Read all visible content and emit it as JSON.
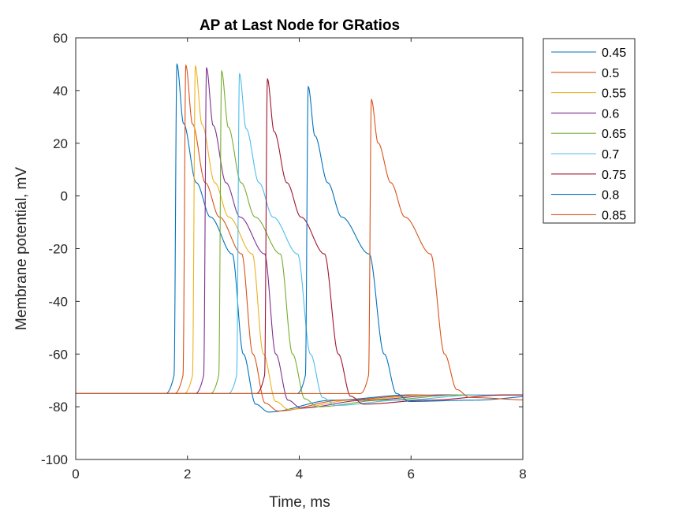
{
  "chart_data": {
    "type": "line",
    "title": "AP at Last Node for GRatios",
    "xlabel": "Time, ms",
    "ylabel": "Membrane potential, mV",
    "xlim": [
      0,
      8
    ],
    "ylim": [
      -100,
      60
    ],
    "xticks": [
      0,
      2,
      4,
      6,
      8
    ],
    "yticks": [
      -100,
      -80,
      -60,
      -40,
      -20,
      0,
      20,
      40,
      60
    ],
    "grid": false,
    "legend_position": "outside top-right",
    "series": [
      {
        "name": "0.45",
        "color": "#0072BD",
        "onset": 1.76,
        "peak": 50.0,
        "t_m20": 2.8,
        "repol": 3.0,
        "min": -82.0
      },
      {
        "name": "0.5",
        "color": "#D95319",
        "onset": 1.92,
        "peak": 49.6,
        "t_m20": 2.97,
        "repol": 3.17,
        "min": -81.6
      },
      {
        "name": "0.55",
        "color": "#EDB120",
        "onset": 2.09,
        "peak": 49.3,
        "t_m20": 3.16,
        "repol": 3.36,
        "min": -81.0
      },
      {
        "name": "0.6",
        "color": "#7E2F8E",
        "onset": 2.29,
        "peak": 48.6,
        "t_m20": 3.38,
        "repol": 3.58,
        "min": -80.5
      },
      {
        "name": "0.65",
        "color": "#77AC30",
        "onset": 2.56,
        "peak": 47.4,
        "t_m20": 3.66,
        "repol": 3.88,
        "min": -80.0
      },
      {
        "name": "0.7",
        "color": "#4DBEEE",
        "onset": 2.88,
        "peak": 46.4,
        "t_m20": 3.97,
        "repol": 4.2,
        "min": -79.5
      },
      {
        "name": "0.75",
        "color": "#A2142F",
        "onset": 3.38,
        "peak": 44.4,
        "t_m20": 4.45,
        "repol": 4.7,
        "min": -79.0
      },
      {
        "name": "0.8",
        "color": "#0072BD",
        "onset": 4.11,
        "peak": 41.5,
        "t_m20": 5.25,
        "repol": 5.52,
        "min": -78.0
      },
      {
        "name": "0.85",
        "color": "#D95319",
        "onset": 5.24,
        "peak": 36.6,
        "t_m20": 6.35,
        "repol": 6.6,
        "min": -76.5
      }
    ],
    "rest_potential": -75.0
  }
}
